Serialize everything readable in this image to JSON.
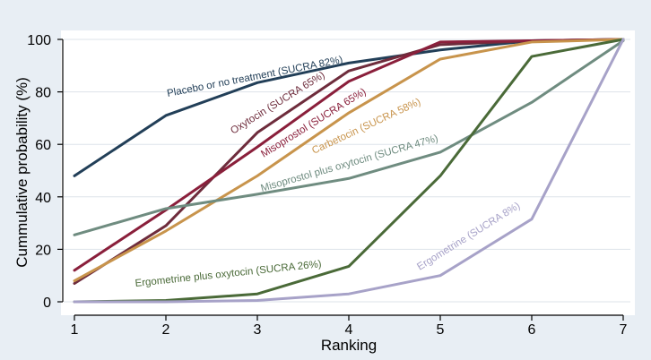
{
  "chart_data": {
    "type": "line",
    "title": "",
    "xlabel": "Ranking",
    "ylabel": "Cummulative probability (%)",
    "x": [
      1,
      2,
      3,
      4,
      5,
      6,
      7
    ],
    "xlim": [
      1,
      7
    ],
    "ylim": [
      0,
      100
    ],
    "xticks": [
      "1",
      "2",
      "3",
      "4",
      "5",
      "6",
      "7"
    ],
    "yticks": [
      "0",
      "20",
      "40",
      "60",
      "80",
      "100"
    ],
    "grid": true,
    "series": [
      {
        "name": "Placebo or no treatment",
        "label": "Placebo or no treatment (SUCRA 82%)",
        "color": "#223f58",
        "values": [
          48,
          71,
          83.5,
          91,
          96,
          99.5,
          100
        ]
      },
      {
        "name": "Oxytocin",
        "label": "Oxytocin (SUCRA 65%)",
        "color": "#6e2c3c",
        "values": [
          7,
          29,
          64.5,
          88,
          98,
          99.5,
          100
        ]
      },
      {
        "name": "Misoprostol",
        "label": "Misoprostol (SUCRA 65%)",
        "color": "#8a1f3b",
        "values": [
          12,
          35,
          59,
          84,
          99,
          99.5,
          100
        ]
      },
      {
        "name": "Carbetocin",
        "label": "Carbetocin (SUCRA 58%)",
        "color": "#c8944c",
        "values": [
          8,
          27,
          48,
          72,
          92.5,
          99,
          100
        ]
      },
      {
        "name": "Misoprostol plus oxytocin",
        "label": "Misoprostol plus oxytocin (SUCRA 47%)",
        "color": "#6f8c80",
        "values": [
          25.5,
          35.5,
          41,
          47,
          57,
          76,
          99.5
        ]
      },
      {
        "name": "Ergometrine plus oxytocin",
        "label": "Ergometrine plus oxytocin (SUCRA 26%)",
        "color": "#4a6a38",
        "values": [
          0,
          0.5,
          3,
          13.5,
          48,
          93.5,
          100
        ]
      },
      {
        "name": "Ergometrine",
        "label": "Ergometrine (SUCRA 8%)",
        "color": "#a7a2c8",
        "values": [
          0,
          0,
          0.5,
          3,
          10,
          31.5,
          100
        ]
      }
    ]
  }
}
